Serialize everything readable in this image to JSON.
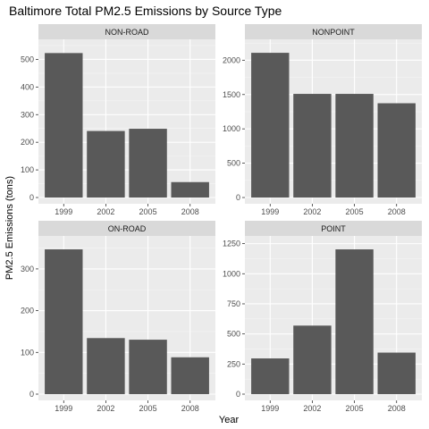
{
  "chart_data": {
    "type": "bar",
    "title": "Baltimore Total PM2.5 Emissions by Source Type",
    "xlabel": "Year",
    "ylabel": "PM2.5 Emissions (tons)",
    "categories": [
      "1999",
      "2002",
      "2005",
      "2008"
    ],
    "grid": true,
    "colors": {
      "bar": "#595959",
      "panel_bg": "#ebebeb",
      "strip_bg": "#d9d9d9",
      "grid_major": "#ffffff",
      "tick_text": "#4d4d4d"
    },
    "panels": [
      {
        "name": "NON-ROAD",
        "values": [
          522.94,
          240.85,
          248.93,
          55.82
        ],
        "ylim": [
          0,
          550
        ],
        "yticks": [
          0,
          100,
          200,
          300,
          400,
          500
        ]
      },
      {
        "name": "NONPOINT",
        "values": [
          2107.63,
          1509.5,
          1509.5,
          1373.21
        ],
        "ylim": [
          0,
          2213
        ],
        "yticks": [
          0,
          500,
          1000,
          1500,
          2000
        ]
      },
      {
        "name": "ON-ROAD",
        "values": [
          346.82,
          134.31,
          130.43,
          88.28
        ],
        "ylim": [
          0,
          364
        ],
        "yticks": [
          0,
          100,
          200,
          300
        ]
      },
      {
        "name": "POINT",
        "values": [
          296.8,
          569.26,
          1202.49,
          344.98
        ],
        "ylim": [
          0,
          1262
        ],
        "yticks": [
          0,
          250,
          500,
          750,
          1000,
          1250
        ]
      }
    ]
  }
}
